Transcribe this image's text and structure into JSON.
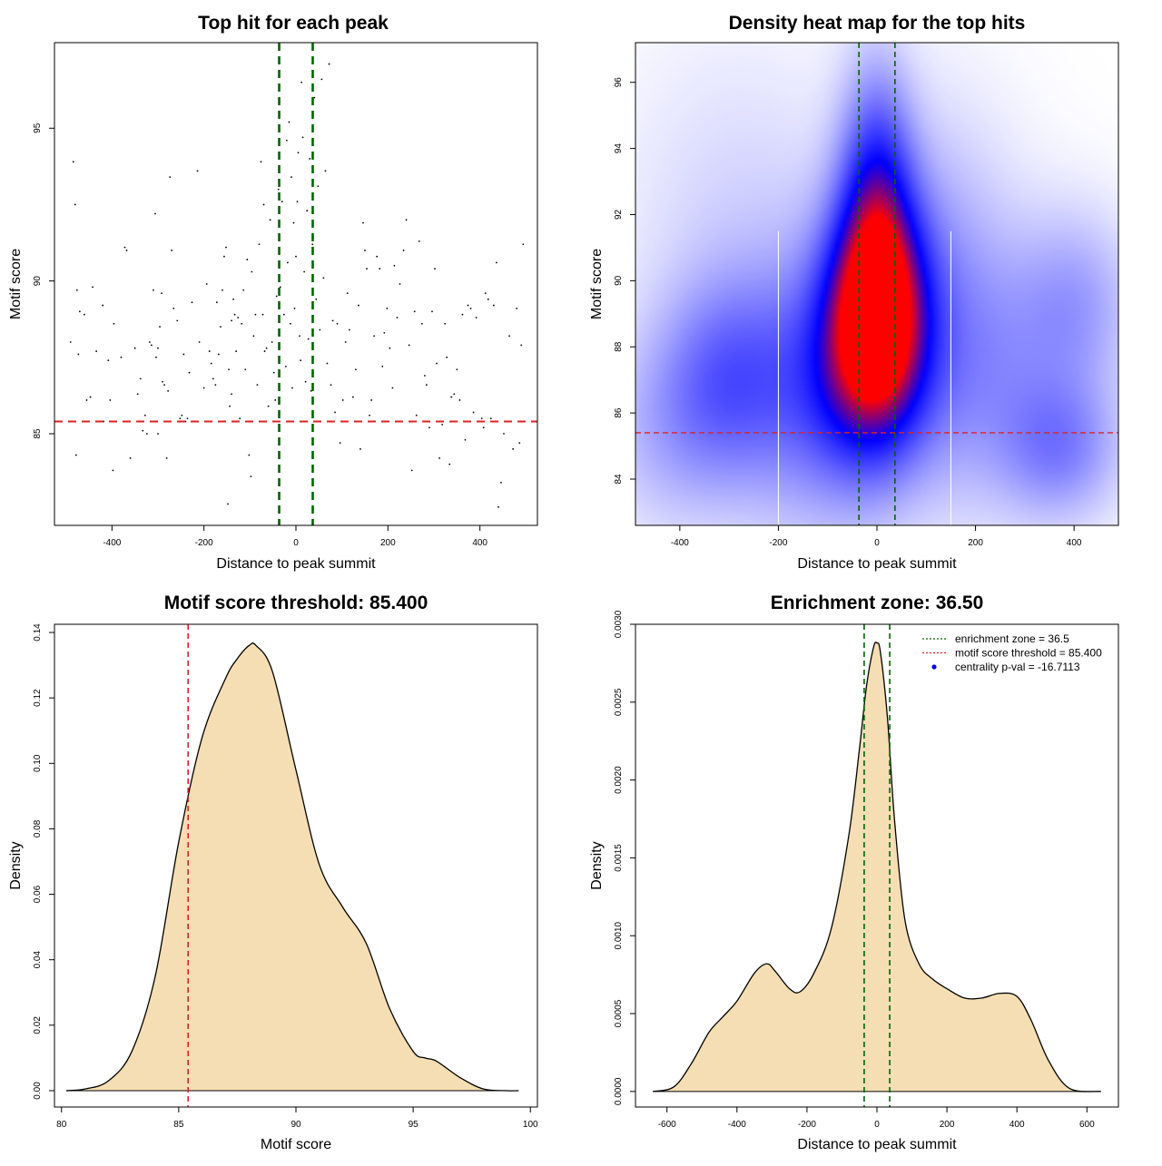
{
  "chart_data": [
    {
      "type": "scatter",
      "title": "Top hit for each peak",
      "xlabel": "Distance to peak summit",
      "ylabel": "Motif score",
      "xlim": [
        -525,
        525
      ],
      "ylim": [
        82,
        97.8
      ],
      "xticks": [
        -400,
        -200,
        0,
        200,
        400
      ],
      "yticks": [
        85,
        90,
        95
      ],
      "vlines": [
        -36.5,
        36.5
      ],
      "hline": 85.4,
      "colors": {
        "vline": "#006400",
        "hline": "#dd2222",
        "points": "#000000"
      },
      "points": [
        [
          -484,
          93.9
        ],
        [
          -480,
          92.5
        ],
        [
          -478,
          84.3
        ],
        [
          -476,
          89.7
        ],
        [
          -473,
          87.6
        ],
        [
          -490,
          88.0
        ],
        [
          -460,
          88.9
        ],
        [
          -455,
          86.1
        ],
        [
          -447,
          86.2
        ],
        [
          -442,
          89.8
        ],
        [
          -434,
          87.7
        ],
        [
          -418,
          85.4
        ],
        [
          -408,
          87.4
        ],
        [
          -404,
          86.1
        ],
        [
          -398,
          83.8
        ],
        [
          -380,
          87.5
        ],
        [
          -372,
          91.1
        ],
        [
          -368,
          91.0
        ],
        [
          -360,
          84.2
        ],
        [
          -350,
          87.8
        ],
        [
          -344,
          86.3
        ],
        [
          -338,
          86.8
        ],
        [
          -333,
          85.1
        ],
        [
          -328,
          85.6
        ],
        [
          -324,
          85.0
        ],
        [
          -318,
          88.0
        ],
        [
          -314,
          87.9
        ],
        [
          -310,
          89.7
        ],
        [
          -306,
          92.2
        ],
        [
          -304,
          87.5
        ],
        [
          -300,
          85.0
        ],
        [
          -296,
          88.5
        ],
        [
          -292,
          89.6
        ],
        [
          -290,
          86.7
        ],
        [
          -286,
          86.6
        ],
        [
          -281,
          84.2
        ],
        [
          -278,
          86.4
        ],
        [
          -274,
          93.4
        ],
        [
          -270,
          91.0
        ],
        [
          -266,
          89.1
        ],
        [
          -258,
          88.7
        ],
        [
          -252,
          85.5
        ],
        [
          -248,
          85.6
        ],
        [
          -244,
          87.6
        ],
        [
          -240,
          85.4
        ],
        [
          -236,
          85.5
        ],
        [
          -232,
          87.0
        ],
        [
          -226,
          89.3
        ],
        [
          -214,
          93.6
        ],
        [
          -210,
          88.0
        ],
        [
          -200,
          86.5
        ],
        [
          -194,
          89.9
        ],
        [
          -188,
          87.7
        ],
        [
          -184,
          87.3
        ],
        [
          -180,
          86.8
        ],
        [
          -175,
          86.6
        ],
        [
          -172,
          89.3
        ],
        [
          -168,
          87.6
        ],
        [
          -164,
          88.5
        ],
        [
          -160,
          89.7
        ],
        [
          -156,
          90.8
        ],
        [
          -152,
          91.1
        ],
        [
          -148,
          82.7
        ],
        [
          -146,
          87.1
        ],
        [
          -144,
          85.9
        ],
        [
          -140,
          88.7
        ],
        [
          -136,
          89.4
        ],
        [
          -133,
          88.9
        ],
        [
          -130,
          87.7
        ],
        [
          -126,
          88.8
        ],
        [
          -122,
          85.5
        ],
        [
          -118,
          88.6
        ],
        [
          -114,
          89.7
        ],
        [
          -110,
          87.1
        ],
        [
          -106,
          90.7
        ],
        [
          -102,
          84.3
        ],
        [
          -98,
          83.6
        ],
        [
          -92,
          88.2
        ],
        [
          -88,
          88.9
        ],
        [
          -84,
          86.6
        ],
        [
          -80,
          91.2
        ],
        [
          -76,
          93.9
        ],
        [
          -72,
          88.9
        ],
        [
          -68,
          87.7
        ],
        [
          -64,
          87.8
        ],
        [
          -60,
          85.9
        ],
        [
          -56,
          92.0
        ],
        [
          -52,
          88.0
        ],
        [
          -48,
          87.0
        ],
        [
          -45,
          86.1
        ],
        [
          -42,
          89.5
        ],
        [
          -38,
          93.0
        ],
        [
          -34,
          89.8
        ],
        [
          -30,
          92.6
        ],
        [
          -26,
          88.9
        ],
        [
          -22,
          87.2
        ],
        [
          -18,
          90.6
        ],
        [
          -15,
          95.2
        ],
        [
          -12,
          88.6
        ],
        [
          -10,
          93.4
        ],
        [
          -8,
          86.5
        ],
        [
          -5,
          91.9
        ],
        [
          -3,
          89.1
        ],
        [
          0,
          90.8
        ],
        [
          3,
          92.6
        ],
        [
          5,
          94.2
        ],
        [
          8,
          88.2
        ],
        [
          10,
          87.4
        ],
        [
          12,
          96.5
        ],
        [
          15,
          94.7
        ],
        [
          18,
          90.3
        ],
        [
          21,
          86.7
        ],
        [
          24,
          92.3
        ],
        [
          27,
          88.1
        ],
        [
          30,
          94.0
        ],
        [
          33,
          86.4
        ],
        [
          36,
          91.2
        ],
        [
          40,
          96.0
        ],
        [
          44,
          89.4
        ],
        [
          48,
          93.1
        ],
        [
          52,
          88.4
        ],
        [
          56,
          96.6
        ],
        [
          60,
          90.1
        ],
        [
          64,
          93.6
        ],
        [
          68,
          87.3
        ],
        [
          72,
          97.1
        ],
        [
          76,
          86.6
        ],
        [
          80,
          88.7
        ],
        [
          85,
          85.7
        ],
        [
          90,
          88.6
        ],
        [
          96,
          84.7
        ],
        [
          102,
          86.1
        ],
        [
          108,
          88.0
        ],
        [
          112,
          89.6
        ],
        [
          116,
          88.4
        ],
        [
          124,
          86.2
        ],
        [
          130,
          87.1
        ],
        [
          136,
          89.2
        ],
        [
          140,
          84.5
        ],
        [
          146,
          91.9
        ],
        [
          150,
          91.0
        ],
        [
          154,
          90.4
        ],
        [
          160,
          85.6
        ],
        [
          164,
          86.1
        ],
        [
          170,
          88.2
        ],
        [
          176,
          90.8
        ],
        [
          182,
          90.4
        ],
        [
          188,
          87.2
        ],
        [
          192,
          88.3
        ],
        [
          198,
          89.1
        ],
        [
          204,
          87.8
        ],
        [
          210,
          86.5
        ],
        [
          214,
          90.5
        ],
        [
          220,
          88.8
        ],
        [
          226,
          89.9
        ],
        [
          234,
          91.0
        ],
        [
          240,
          92.0
        ],
        [
          246,
          87.9
        ],
        [
          252,
          83.8
        ],
        [
          258,
          89.0
        ],
        [
          262,
          85.6
        ],
        [
          268,
          91.3
        ],
        [
          274,
          88.6
        ],
        [
          280,
          86.9
        ],
        [
          284,
          86.6
        ],
        [
          290,
          85.2
        ],
        [
          296,
          89.0
        ],
        [
          302,
          90.4
        ],
        [
          306,
          87.3
        ],
        [
          312,
          84.2
        ],
        [
          318,
          85.3
        ],
        [
          324,
          88.6
        ],
        [
          328,
          87.5
        ],
        [
          334,
          84.0
        ],
        [
          338,
          86.2
        ],
        [
          344,
          86.3
        ],
        [
          350,
          87.1
        ],
        [
          356,
          86.1
        ],
        [
          362,
          88.9
        ],
        [
          368,
          84.8
        ],
        [
          374,
          89.2
        ],
        [
          380,
          89.1
        ],
        [
          386,
          85.7
        ],
        [
          392,
          88.8
        ],
        [
          398,
          85.4
        ],
        [
          404,
          85.5
        ],
        [
          408,
          85.2
        ],
        [
          412,
          89.6
        ],
        [
          418,
          89.4
        ],
        [
          424,
          85.5
        ],
        [
          430,
          89.2
        ],
        [
          436,
          90.6
        ],
        [
          440,
          82.6
        ],
        [
          446,
          83.4
        ],
        [
          452,
          85.0
        ],
        [
          464,
          88.2
        ],
        [
          472,
          84.5
        ],
        [
          480,
          89.1
        ],
        [
          486,
          84.7
        ],
        [
          490,
          87.9
        ],
        [
          494,
          91.2
        ],
        [
          -470,
          89.0
        ],
        [
          -420,
          89.2
        ],
        [
          -396,
          88.6
        ],
        [
          -300,
          87.8
        ],
        [
          -250,
          85.4
        ],
        [
          -140,
          86.3
        ],
        [
          -96,
          90.3
        ],
        [
          -70,
          92.5
        ],
        [
          -20,
          94.6
        ]
      ]
    },
    {
      "type": "heatmap",
      "title": "Density heat map for the top hits",
      "xlabel": "Distance to peak summit",
      "ylabel": "Motif score",
      "xlim": [
        -490,
        490
      ],
      "ylim": [
        82.6,
        97.2
      ],
      "xticks": [
        -400,
        -200,
        0,
        200,
        400
      ],
      "yticks": [
        84,
        86,
        88,
        90,
        92,
        94,
        96
      ],
      "vlines": [
        -36.5,
        36.5
      ],
      "hline": 85.4,
      "white_lines": [
        -200,
        150
      ],
      "colors": {
        "low": "#ffffff",
        "mid": "#0000ff",
        "high": "#ff0000",
        "vline": "#006400",
        "hline": "#dd2222"
      },
      "blobs": [
        {
          "x": 0,
          "y": 89.0,
          "sx": 65,
          "sy": 2.2,
          "w": 1.0
        },
        {
          "x": 0,
          "y": 92.5,
          "sx": 48,
          "sy": 2.4,
          "w": 0.42
        },
        {
          "x": -40,
          "y": 87.2,
          "sx": 90,
          "sy": 2.3,
          "w": 0.35
        },
        {
          "x": -300,
          "y": 87.0,
          "sx": 90,
          "sy": 2.0,
          "w": 0.24
        },
        {
          "x": -420,
          "y": 85.5,
          "sx": 95,
          "sy": 2.0,
          "w": 0.1
        },
        {
          "x": -150,
          "y": 86.5,
          "sx": 110,
          "sy": 2.8,
          "w": 0.14
        },
        {
          "x": 200,
          "y": 87.2,
          "sx": 130,
          "sy": 2.6,
          "w": 0.16
        },
        {
          "x": 370,
          "y": 85.0,
          "sx": 80,
          "sy": 1.4,
          "w": 0.2
        },
        {
          "x": 400,
          "y": 89.2,
          "sx": 80,
          "sy": 1.8,
          "w": 0.14
        },
        {
          "x": 100,
          "y": 90.5,
          "sx": 110,
          "sy": 3.0,
          "w": 0.12
        },
        {
          "x": -280,
          "y": 91.5,
          "sx": 150,
          "sy": 3.5,
          "w": 0.05
        }
      ]
    },
    {
      "type": "area",
      "title": "Motif score threshold: 85.400",
      "xlabel": "Motif score",
      "ylabel": "Density",
      "xlim": [
        79.7,
        100.3
      ],
      "ylim": [
        -0.005,
        0.1425
      ],
      "xticks": [
        80,
        85,
        90,
        95,
        100
      ],
      "yticks": [
        0.0,
        0.02,
        0.04,
        0.06,
        0.08,
        0.1,
        0.12,
        0.14
      ],
      "ytick_labels": [
        "0.00",
        "0.02",
        "0.04",
        "0.06",
        "0.08",
        "0.10",
        "0.12",
        "0.14"
      ],
      "vline": 85.4,
      "colors": {
        "fill": "#f5deb3",
        "line": "#000000",
        "vline": "#dd2222"
      },
      "x": [
        80.2,
        81.0,
        82.0,
        83.0,
        84.0,
        85.0,
        86.0,
        87.0,
        87.5,
        88.0,
        88.3,
        89.0,
        90.0,
        91.0,
        92.0,
        93.0,
        94.0,
        95.0,
        95.5,
        96.0,
        97.0,
        98.0,
        99.0,
        99.5
      ],
      "y": [
        0.0,
        0.0005,
        0.003,
        0.012,
        0.035,
        0.076,
        0.108,
        0.126,
        0.132,
        0.136,
        0.136,
        0.128,
        0.098,
        0.069,
        0.056,
        0.045,
        0.025,
        0.012,
        0.01,
        0.009,
        0.004,
        0.0005,
        0.0,
        0.0
      ]
    },
    {
      "type": "area",
      "title": "Enrichment zone: 36.50",
      "xlabel": "Distance to peak summit",
      "ylabel": "Density",
      "xlim": [
        -690,
        690
      ],
      "ylim": [
        -0.0001,
        0.003
      ],
      "xticks": [
        -600,
        -400,
        -200,
        0,
        200,
        400,
        600
      ],
      "yticks": [
        0.0,
        0.0005,
        0.001,
        0.0015,
        0.002,
        0.0025,
        0.003
      ],
      "ytick_labels": [
        "0.0000",
        "0.0005",
        "0.0010",
        "0.0015",
        "0.0020",
        "0.0025",
        "0.0030"
      ],
      "vlines": [
        -36.5,
        36.5
      ],
      "colors": {
        "fill": "#f5deb3",
        "line": "#000000",
        "vline": "#006400",
        "legend_zone": "#006400",
        "legend_threshold": "#dd2222",
        "legend_pval": "#0000ff"
      },
      "x": [
        -640,
        -580,
        -530,
        -480,
        -440,
        -400,
        -350,
        -315,
        -290,
        -250,
        -220,
        -180,
        -130,
        -80,
        -50,
        -30,
        -10,
        0,
        10,
        30,
        50,
        80,
        120,
        160,
        200,
        250,
        300,
        350,
        400,
        440,
        490,
        550,
        640
      ],
      "y": [
        0.0,
        3e-05,
        0.00018,
        0.00038,
        0.00048,
        0.00058,
        0.00076,
        0.00082,
        0.00077,
        0.00066,
        0.00064,
        0.00076,
        0.00105,
        0.00165,
        0.0022,
        0.0026,
        0.00285,
        0.00288,
        0.00282,
        0.0024,
        0.00175,
        0.0011,
        0.00082,
        0.00072,
        0.00066,
        0.0006,
        0.0006,
        0.00063,
        0.00061,
        0.00046,
        0.0002,
        2e-05,
        0.0
      ],
      "legend": [
        {
          "label": "enrichment zone = 36.5",
          "symbol": "dotted-line",
          "color": "#006400"
        },
        {
          "label": "motif score threshold = 85.400",
          "symbol": "dotted-line",
          "color": "#dd2222"
        },
        {
          "label": "centrality p-val = -16.7113",
          "symbol": "dot",
          "color": "#0000ff"
        }
      ]
    }
  ]
}
